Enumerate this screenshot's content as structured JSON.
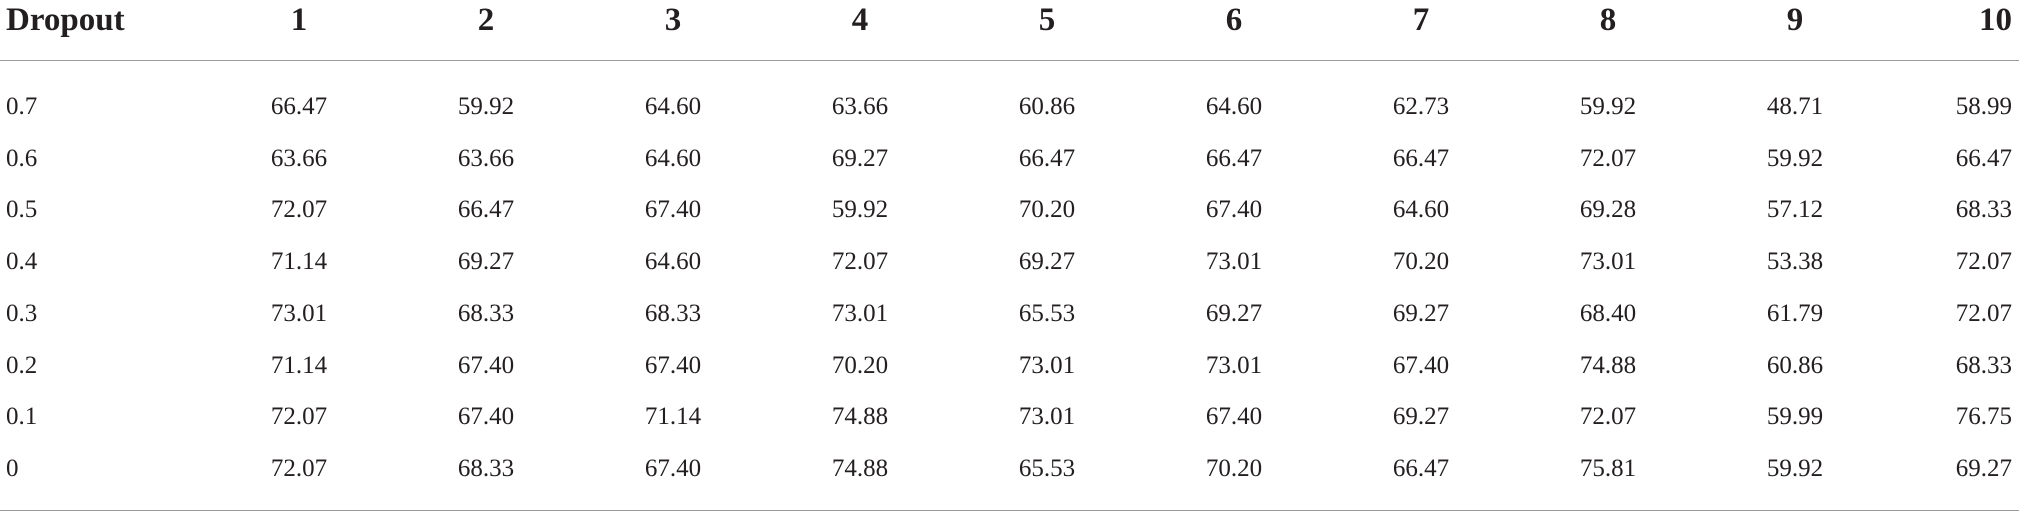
{
  "table": {
    "header": [
      "Dropout",
      "1",
      "2",
      "3",
      "4",
      "5",
      "6",
      "7",
      "8",
      "9",
      "10"
    ],
    "rows": [
      [
        "0.7",
        "66.47",
        "59.92",
        "64.60",
        "63.66",
        "60.86",
        "64.60",
        "62.73",
        "59.92",
        "48.71",
        "58.99"
      ],
      [
        "0.6",
        "63.66",
        "63.66",
        "64.60",
        "69.27",
        "66.47",
        "66.47",
        "66.47",
        "72.07",
        "59.92",
        "66.47"
      ],
      [
        "0.5",
        "72.07",
        "66.47",
        "67.40",
        "59.92",
        "70.20",
        "67.40",
        "64.60",
        "69.28",
        "57.12",
        "68.33"
      ],
      [
        "0.4",
        "71.14",
        "69.27",
        "64.60",
        "72.07",
        "69.27",
        "73.01",
        "70.20",
        "73.01",
        "53.38",
        "72.07"
      ],
      [
        "0.3",
        "73.01",
        "68.33",
        "68.33",
        "73.01",
        "65.53",
        "69.27",
        "69.27",
        "68.40",
        "61.79",
        "72.07"
      ],
      [
        "0.2",
        "71.14",
        "67.40",
        "67.40",
        "70.20",
        "73.01",
        "73.01",
        "67.40",
        "74.88",
        "60.86",
        "68.33"
      ],
      [
        "0.1",
        "72.07",
        "67.40",
        "71.14",
        "74.88",
        "73.01",
        "67.40",
        "69.27",
        "72.07",
        "59.99",
        "76.75"
      ],
      [
        "0",
        "72.07",
        "68.33",
        "67.40",
        "74.88",
        "65.53",
        "70.20",
        "66.47",
        "75.81",
        "59.92",
        "69.27"
      ]
    ]
  }
}
